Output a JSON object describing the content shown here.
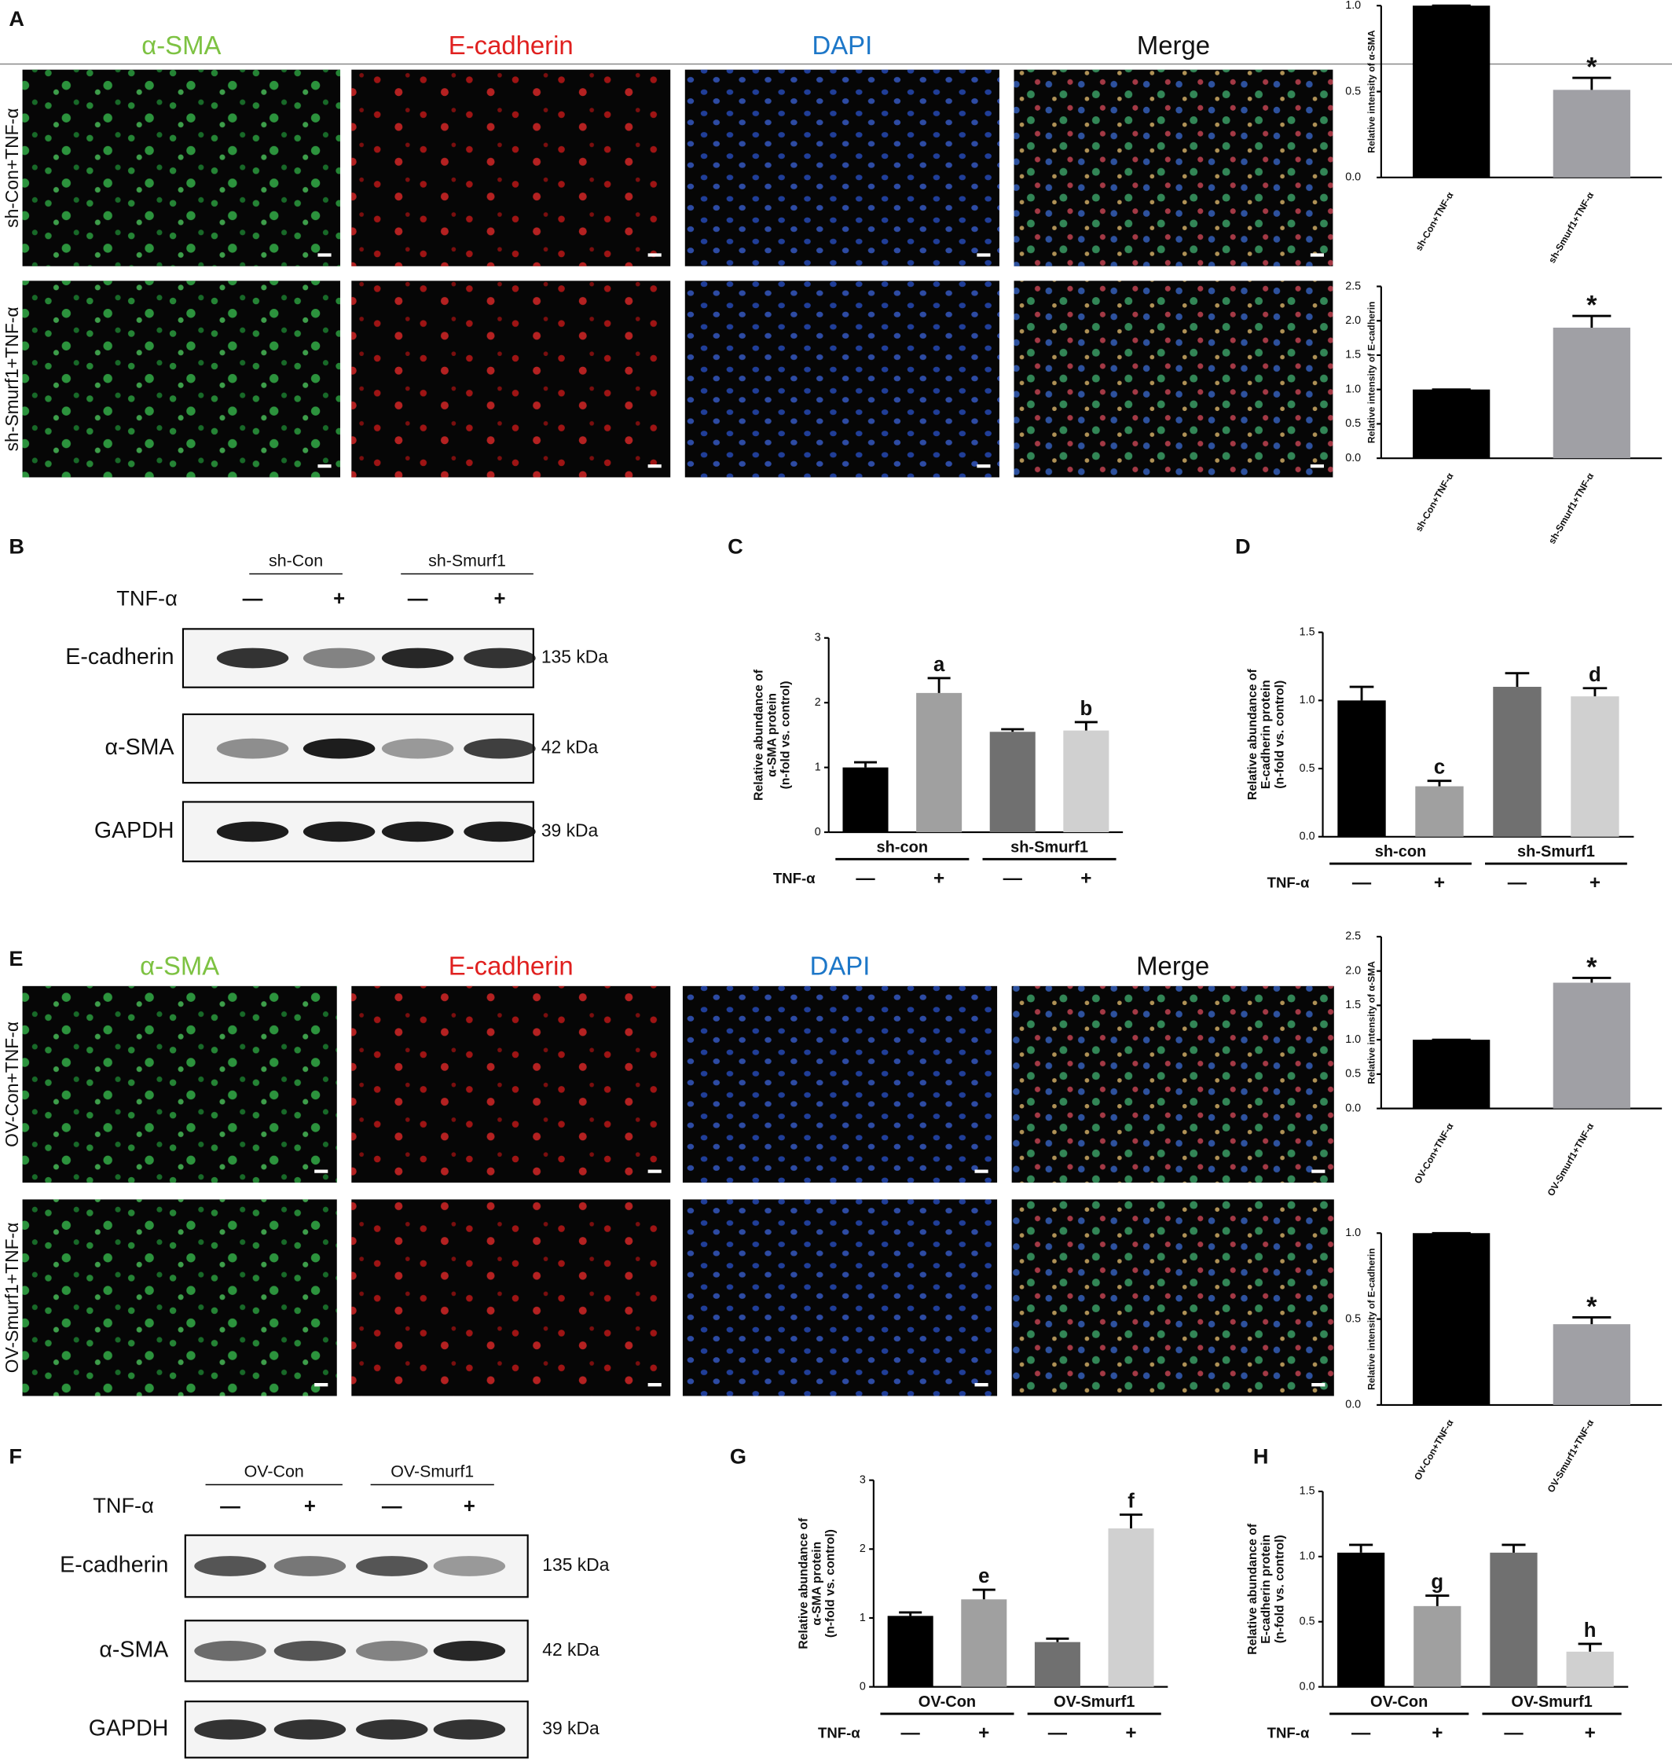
{
  "panel_labels": [
    "A",
    "B",
    "C",
    "D",
    "E",
    "F",
    "G",
    "H"
  ],
  "microscopy": [
    {
      "channels": [
        "α-SMA",
        "E-cadherin",
        "DAPI",
        "Merge"
      ],
      "channel_colors": [
        "#7dc242",
        "#e0201f",
        "#1d77c8",
        "#111111"
      ],
      "rows": [
        "sh-Con+TNF-α",
        "sh-Smurf1+TNF-α"
      ]
    },
    {
      "channels": [
        "α-SMA",
        "E-cadherin",
        "DAPI",
        "Merge"
      ],
      "channel_colors": [
        "#7dc242",
        "#e0201f",
        "#1d77c8",
        "#111111"
      ],
      "rows": [
        "OV-Con+TNF-α",
        "OV-Smurf1+TNF-α"
      ]
    }
  ],
  "blots": [
    {
      "groups": [
        "sh-Con",
        "sh-Smurf1"
      ],
      "treatment": "TNF-α",
      "signs": [
        "—",
        "+",
        "—",
        "+"
      ],
      "proteins": [
        "E-cadherin",
        "α-SMA",
        "GAPDH"
      ],
      "sizes": [
        "135 kDa",
        "42 kDa",
        "39 kDa"
      ]
    },
    {
      "groups": [
        "OV-Con",
        "OV-Smurf1"
      ],
      "treatment": "TNF-α",
      "signs": [
        "—",
        "+",
        "—",
        "+"
      ],
      "proteins": [
        "E-cadherin",
        "α-SMA",
        "GAPDH"
      ],
      "sizes": [
        "135 kDa",
        "42 kDa",
        "39 kDa"
      ]
    }
  ],
  "chart_data": [
    {
      "type": "bar",
      "y_label": "Relative intensity of α-SMA",
      "categories": [
        "sh-Con+TNF-α",
        "sh-Smurf1+TNF-α"
      ],
      "values": [
        1.0,
        0.51
      ],
      "errors": [
        0,
        0.07
      ],
      "colors": [
        "#000000",
        "#a0a0a5"
      ],
      "bar_labels": [
        null,
        "*"
      ],
      "ylim": [
        0,
        1
      ],
      "yticks": [
        {
          "value": 0,
          "label": "0.0"
        },
        {
          "value": 0.5,
          "label": "0.5"
        },
        {
          "value": 1,
          "label": "1.0"
        }
      ]
    },
    {
      "type": "bar",
      "y_label": "Relative intensity of E-cadherin",
      "categories": [
        "sh-Con+TNF-α",
        "sh-Smurf1+TNF-α"
      ],
      "values": [
        1.0,
        1.9
      ],
      "errors": [
        0,
        0.17
      ],
      "colors": [
        "#000000",
        "#a0a0a5"
      ],
      "bar_labels": [
        null,
        "*"
      ],
      "ylim": [
        0,
        2.5
      ],
      "yticks": [
        {
          "value": 0,
          "label": "0.0"
        },
        {
          "value": 0.5,
          "label": "0.5"
        },
        {
          "value": 1,
          "label": "1.0"
        },
        {
          "value": 1.5,
          "label": "1.5"
        },
        {
          "value": 2,
          "label": "2.0"
        },
        {
          "value": 2.5,
          "label": "2.5"
        }
      ]
    },
    {
      "type": "bar",
      "y_label": [
        "Relative abundance of",
        "α-SMA protein",
        "(n-fold vs. control)"
      ],
      "categories": [
        "—",
        "+",
        "—",
        "+"
      ],
      "groups": [
        "sh-con",
        "sh-Smurf1"
      ],
      "x_label": "TNF-α",
      "values": [
        1.0,
        2.15,
        1.55,
        1.57
      ],
      "errors": [
        0.08,
        0.23,
        0.04,
        0.13
      ],
      "colors": [
        "#000000",
        "#a0a0a0",
        "#707070",
        "#d0d0d0"
      ],
      "bar_labels": [
        null,
        "a",
        null,
        "b"
      ],
      "ylim": [
        0,
        3
      ],
      "yticks": [
        0,
        1,
        2,
        3
      ]
    },
    {
      "type": "bar",
      "y_label": [
        "Relative abundance of",
        "E-cadherin protein",
        "(n-fold vs. control)"
      ],
      "categories": [
        "—",
        "+",
        "—",
        "+"
      ],
      "groups": [
        "sh-con",
        "sh-Smurf1"
      ],
      "x_label": "TNF-α",
      "values": [
        1.0,
        0.37,
        1.1,
        1.03
      ],
      "errors": [
        0.1,
        0.04,
        0.1,
        0.06
      ],
      "colors": [
        "#000000",
        "#a0a0a0",
        "#707070",
        "#d0d0d0"
      ],
      "bar_labels": [
        null,
        "c",
        null,
        "d"
      ],
      "ylim": [
        0,
        1.5
      ],
      "yticks": [
        {
          "value": 0,
          "label": "0.0"
        },
        {
          "value": 0.5,
          "label": "0.5"
        },
        {
          "value": 1,
          "label": "1.0"
        },
        {
          "value": 1.5,
          "label": "1.5"
        }
      ]
    },
    {
      "type": "bar",
      "y_label": "Relative intensity of α-SMA",
      "categories": [
        "OV-Con+TNF-α",
        "OV-Smurf1+TNF-α"
      ],
      "values": [
        1.0,
        1.83
      ],
      "errors": [
        0,
        0.07
      ],
      "colors": [
        "#000000",
        "#a0a0a5"
      ],
      "bar_labels": [
        null,
        "*"
      ],
      "ylim": [
        0,
        2.5
      ],
      "yticks": [
        {
          "value": 0,
          "label": "0.0"
        },
        {
          "value": 0.5,
          "label": "0.5"
        },
        {
          "value": 1,
          "label": "1.0"
        },
        {
          "value": 1.5,
          "label": "1.5"
        },
        {
          "value": 2,
          "label": "2.0"
        },
        {
          "value": 2.5,
          "label": "2.5"
        }
      ]
    },
    {
      "type": "bar",
      "y_label": "Relative intensity of E-cadherin",
      "categories": [
        "OV-Con+TNF-α",
        "OV-Smurf1+TNF-α"
      ],
      "values": [
        1.0,
        0.47
      ],
      "errors": [
        0,
        0.04
      ],
      "colors": [
        "#000000",
        "#a0a0a5"
      ],
      "bar_labels": [
        null,
        "*"
      ],
      "ylim": [
        0,
        1
      ],
      "yticks": [
        {
          "value": 0,
          "label": "0.0"
        },
        {
          "value": 0.5,
          "label": "0.5"
        },
        {
          "value": 1,
          "label": "1.0"
        }
      ]
    },
    {
      "type": "bar",
      "y_label": [
        "Relative abundance of",
        "α-SMA protein",
        "(n-fold vs. control)"
      ],
      "categories": [
        "—",
        "+",
        "—",
        "+"
      ],
      "groups": [
        "OV-Con",
        "OV-Smurf1"
      ],
      "x_label": "TNF-α",
      "values": [
        1.03,
        1.27,
        0.65,
        2.3
      ],
      "errors": [
        0.05,
        0.14,
        0.05,
        0.2
      ],
      "colors": [
        "#000000",
        "#a0a0a0",
        "#707070",
        "#d0d0d0"
      ],
      "bar_labels": [
        null,
        "e",
        null,
        "f"
      ],
      "ylim": [
        0,
        3
      ],
      "yticks": [
        0,
        1,
        2,
        3
      ]
    },
    {
      "type": "bar",
      "y_label": [
        "Relative abundance of",
        "E-cadherin protein",
        "(n-fold vs. control)"
      ],
      "categories": [
        "—",
        "+",
        "—",
        "+"
      ],
      "groups": [
        "OV-Con",
        "OV-Smurf1"
      ],
      "x_label": "TNF-α",
      "values": [
        1.03,
        0.62,
        1.03,
        0.27
      ],
      "errors": [
        0.06,
        0.08,
        0.06,
        0.06
      ],
      "colors": [
        "#000000",
        "#a0a0a0",
        "#707070",
        "#d0d0d0"
      ],
      "bar_labels": [
        null,
        "g",
        null,
        "h"
      ],
      "ylim": [
        0,
        1.5
      ],
      "yticks": [
        {
          "value": 0,
          "label": "0.0"
        },
        {
          "value": 0.5,
          "label": "0.5"
        },
        {
          "value": 1,
          "label": "1.0"
        },
        {
          "value": 1.5,
          "label": "1.5"
        }
      ]
    }
  ]
}
